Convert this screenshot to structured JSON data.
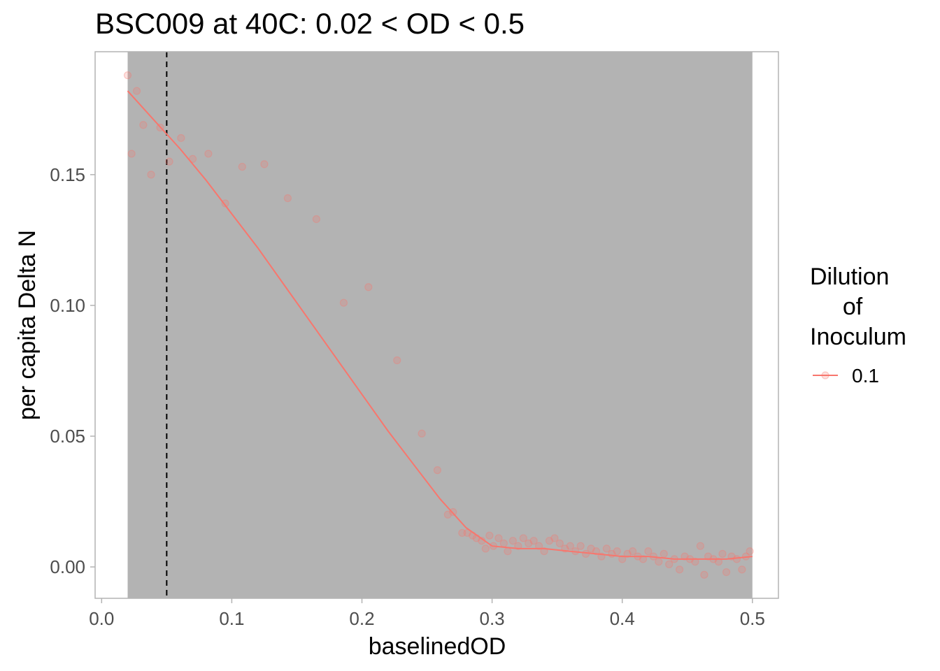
{
  "chart_data": {
    "type": "scatter",
    "title": "BSC009 at 40C: 0.02 < OD < 0.5",
    "xlabel": "baselinedOD",
    "ylabel": "per capita Delta N",
    "xlim": [
      -0.005,
      0.52
    ],
    "ylim": [
      -0.012,
      0.197
    ],
    "x_ticks": [
      0.0,
      0.1,
      0.2,
      0.3,
      0.4,
      0.5
    ],
    "x_tick_labels": [
      "0.0",
      "0.1",
      "0.2",
      "0.3",
      "0.4",
      "0.5"
    ],
    "y_ticks": [
      0.0,
      0.05,
      0.1,
      0.15
    ],
    "y_tick_labels": [
      "0.00",
      "0.05",
      "0.10",
      "0.15"
    ],
    "grid": false,
    "legend": {
      "title_lines": [
        "Dilution",
        "of",
        "Inoculum"
      ],
      "position": "right",
      "entries": [
        "0.1"
      ]
    },
    "colors": {
      "series": "#f8766d",
      "shaded_region": "#b3b3b3",
      "panel_background": "#ffffff",
      "panel_border": "#b3b3b3",
      "vline": "#000000"
    },
    "shaded_region": {
      "x_from": 0.02,
      "x_to": 0.5
    },
    "vline": {
      "x": 0.05,
      "style": "dashed"
    },
    "series": [
      {
        "name": "0.1",
        "points": [
          [
            0.02,
            0.188
          ],
          [
            0.023,
            0.158
          ],
          [
            0.027,
            0.182
          ],
          [
            0.032,
            0.169
          ],
          [
            0.038,
            0.15
          ],
          [
            0.045,
            0.168
          ],
          [
            0.052,
            0.155
          ],
          [
            0.061,
            0.164
          ],
          [
            0.07,
            0.156
          ],
          [
            0.082,
            0.158
          ],
          [
            0.095,
            0.139
          ],
          [
            0.108,
            0.153
          ],
          [
            0.125,
            0.154
          ],
          [
            0.143,
            0.141
          ],
          [
            0.165,
            0.133
          ],
          [
            0.186,
            0.101
          ],
          [
            0.205,
            0.107
          ],
          [
            0.227,
            0.079
          ],
          [
            0.246,
            0.051
          ],
          [
            0.258,
            0.037
          ],
          [
            0.266,
            0.02
          ],
          [
            0.27,
            0.021
          ],
          [
            0.277,
            0.013
          ],
          [
            0.281,
            0.013
          ],
          [
            0.285,
            0.012
          ],
          [
            0.288,
            0.011
          ],
          [
            0.292,
            0.01
          ],
          [
            0.295,
            0.007
          ],
          [
            0.298,
            0.012
          ],
          [
            0.301,
            0.008
          ],
          [
            0.305,
            0.011
          ],
          [
            0.309,
            0.009
          ],
          [
            0.312,
            0.006
          ],
          [
            0.316,
            0.01
          ],
          [
            0.32,
            0.008
          ],
          [
            0.324,
            0.011
          ],
          [
            0.328,
            0.009
          ],
          [
            0.332,
            0.01
          ],
          [
            0.336,
            0.008
          ],
          [
            0.34,
            0.006
          ],
          [
            0.344,
            0.01
          ],
          [
            0.348,
            0.011
          ],
          [
            0.352,
            0.009
          ],
          [
            0.356,
            0.007
          ],
          [
            0.36,
            0.008
          ],
          [
            0.364,
            0.006
          ],
          [
            0.368,
            0.008
          ],
          [
            0.372,
            0.005
          ],
          [
            0.376,
            0.007
          ],
          [
            0.38,
            0.006
          ],
          [
            0.384,
            0.004
          ],
          [
            0.388,
            0.007
          ],
          [
            0.392,
            0.005
          ],
          [
            0.396,
            0.006
          ],
          [
            0.4,
            0.003
          ],
          [
            0.404,
            0.005
          ],
          [
            0.408,
            0.006
          ],
          [
            0.412,
            0.004
          ],
          [
            0.416,
            0.003
          ],
          [
            0.42,
            0.006
          ],
          [
            0.424,
            0.004
          ],
          [
            0.428,
            0.002
          ],
          [
            0.432,
            0.005
          ],
          [
            0.436,
            0.001
          ],
          [
            0.44,
            0.003
          ],
          [
            0.444,
            -0.001
          ],
          [
            0.448,
            0.004
          ],
          [
            0.452,
            0.003
          ],
          [
            0.456,
            0.002
          ],
          [
            0.46,
            0.008
          ],
          [
            0.463,
            -0.003
          ],
          [
            0.466,
            0.004
          ],
          [
            0.47,
            0.003
          ],
          [
            0.474,
            0.002
          ],
          [
            0.477,
            0.005
          ],
          [
            0.48,
            -0.002
          ],
          [
            0.484,
            0.004
          ],
          [
            0.488,
            0.003
          ],
          [
            0.492,
            -0.001
          ],
          [
            0.495,
            0.004
          ],
          [
            0.498,
            0.006
          ]
        ],
        "smooth_line": [
          [
            0.02,
            0.182
          ],
          [
            0.04,
            0.171
          ],
          [
            0.06,
            0.16
          ],
          [
            0.08,
            0.148
          ],
          [
            0.1,
            0.135
          ],
          [
            0.12,
            0.122
          ],
          [
            0.14,
            0.108
          ],
          [
            0.16,
            0.094
          ],
          [
            0.18,
            0.08
          ],
          [
            0.2,
            0.066
          ],
          [
            0.22,
            0.052
          ],
          [
            0.24,
            0.039
          ],
          [
            0.26,
            0.026
          ],
          [
            0.28,
            0.015
          ],
          [
            0.3,
            0.008
          ],
          [
            0.32,
            0.007
          ],
          [
            0.34,
            0.007
          ],
          [
            0.36,
            0.006
          ],
          [
            0.38,
            0.005
          ],
          [
            0.4,
            0.004
          ],
          [
            0.42,
            0.004
          ],
          [
            0.44,
            0.003
          ],
          [
            0.46,
            0.003
          ],
          [
            0.48,
            0.003
          ],
          [
            0.5,
            0.004
          ]
        ]
      }
    ]
  }
}
